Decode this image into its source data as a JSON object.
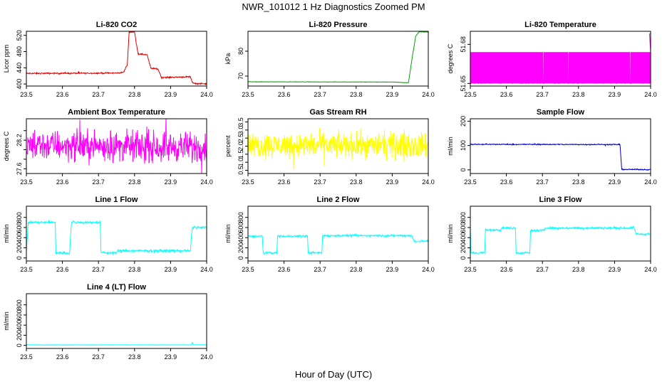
{
  "figure": {
    "title": "NWR_101012  1 Hz Diagnostics Zoomed PM",
    "xlabel": "Hour of Day (UTC)"
  },
  "chart_data": [
    {
      "type": "line",
      "title": "Li-820 CO2",
      "ylabel": "Licor ppm",
      "color": "#e00000",
      "xlim": [
        23.5,
        24.0
      ],
      "ylim": [
        395,
        530
      ],
      "xticks": [
        "23.5",
        "23.6",
        "23.7",
        "23.8",
        "23.9",
        "24.0"
      ],
      "yticks": [
        "400",
        "440",
        "480",
        "520"
      ],
      "x": [
        23.5,
        23.75,
        23.77,
        23.78,
        23.785,
        23.8,
        23.81,
        23.835,
        23.845,
        23.865,
        23.875,
        23.955,
        23.96,
        23.97,
        24.0
      ],
      "y": [
        426,
        427,
        429,
        448,
        528,
        528,
        474,
        472,
        439,
        437,
        416,
        418,
        404,
        401,
        401
      ],
      "noise": 1.2
    },
    {
      "type": "line",
      "title": "Li-820 Pressure",
      "ylabel": "kPa",
      "color": "#00a000",
      "xlim": [
        23.5,
        24.0
      ],
      "ylim": [
        66,
        88
      ],
      "xticks": [
        "23.5",
        "23.6",
        "23.7",
        "23.8",
        "23.9",
        "24.0"
      ],
      "yticks": [
        "70",
        "80"
      ],
      "x": [
        23.5,
        23.91,
        23.93,
        23.945,
        23.955,
        23.965,
        23.975,
        24.0
      ],
      "y": [
        67.7,
        67.6,
        67.4,
        67.4,
        77,
        86,
        87.8,
        87.7
      ],
      "noise": 0.06
    },
    {
      "type": "line",
      "title": "Li-820 Temperature",
      "ylabel": "degrees C",
      "color": "#ff00ff",
      "xlim": [
        23.5,
        24.0
      ],
      "ylim": [
        51.648,
        51.69
      ],
      "xticks": [
        "23.5",
        "23.6",
        "23.7",
        "23.8",
        "23.9",
        "24.0"
      ],
      "yticks": [
        "51.65",
        "51.68"
      ],
      "x": [
        23.5,
        23.995,
        23.997,
        24.0
      ],
      "y": [
        51.652,
        51.652,
        51.688,
        51.688
      ],
      "toggle": [
        51.65,
        51.674
      ],
      "noise": 0
    },
    {
      "type": "line",
      "title": "Ambient Box Temperature",
      "ylabel": "degrees C",
      "color": "#ff00ff",
      "xlim": [
        23.5,
        24.0
      ],
      "ylim": [
        27.5,
        28.65
      ],
      "xticks": [
        "23.5",
        "23.6",
        "23.7",
        "23.8",
        "23.9",
        "24.0"
      ],
      "yticks": [
        "27.6",
        "28.2"
      ],
      "yticksMinor": [
        "27.8",
        "28.0",
        "28.4"
      ],
      "x": [
        23.5,
        24.0
      ],
      "y": [
        28.1,
        28.05
      ],
      "noise": 0.22
    },
    {
      "type": "line",
      "title": "Gas Stream RH",
      "ylabel": "percent",
      "color": "#ffff00",
      "xlim": [
        23.5,
        24.0
      ],
      "ylim": [
        0.3,
        3.7
      ],
      "xticks": [
        "23.5",
        "23.6",
        "23.7",
        "23.8",
        "23.9",
        "24.0"
      ],
      "yticks": [
        "0.5",
        "1.0",
        "1.5",
        "2.0",
        "2.5",
        "3.0",
        "3.5"
      ],
      "x": [
        23.5,
        24.0
      ],
      "y": [
        2.05,
        2.05
      ],
      "noise": 0.55
    },
    {
      "type": "line",
      "title": "Sample Flow",
      "ylabel": "ml/min",
      "color": "#0000cc",
      "xlim": [
        23.5,
        24.0
      ],
      "ylim": [
        -15,
        210
      ],
      "xticks": [
        "23.5",
        "23.6",
        "23.7",
        "23.8",
        "23.9",
        "24.0"
      ],
      "yticks": [
        "0",
        "100",
        "200"
      ],
      "x": [
        23.5,
        23.915,
        23.92,
        24.0
      ],
      "y": [
        105,
        104,
        2,
        1
      ],
      "noise": 1.5
    },
    {
      "type": "line",
      "title": "Line 1 Flow",
      "ylabel": "ml/min",
      "color": "#00ffff",
      "xlim": [
        23.5,
        24.0
      ],
      "ylim": [
        -60,
        1020
      ],
      "xticks": [
        "23.5",
        "23.6",
        "23.7",
        "23.8",
        "23.9",
        "24.0"
      ],
      "yticks": [
        "0",
        "200",
        "400",
        "600",
        "800"
      ],
      "x": [
        23.5,
        23.505,
        23.58,
        23.582,
        23.62,
        23.625,
        23.705,
        23.707,
        23.75,
        23.752,
        23.955,
        23.96,
        24.0
      ],
      "y": [
        100,
        700,
        700,
        100,
        100,
        700,
        700,
        100,
        100,
        140,
        140,
        600,
        600
      ],
      "noise": 18
    },
    {
      "type": "line",
      "title": "Line 2 Flow",
      "ylabel": "ml/min",
      "color": "#00ffff",
      "xlim": [
        23.5,
        24.0
      ],
      "ylim": [
        -60,
        1020
      ],
      "xticks": [
        "23.5",
        "23.6",
        "23.7",
        "23.8",
        "23.9",
        "24.0"
      ],
      "yticks": [
        "0",
        "200",
        "400",
        "600",
        "800"
      ],
      "x": [
        23.5,
        23.54,
        23.542,
        23.58,
        23.582,
        23.665,
        23.667,
        23.705,
        23.707,
        23.955,
        23.96,
        24.0
      ],
      "y": [
        430,
        430,
        100,
        100,
        430,
        430,
        100,
        100,
        440,
        440,
        330,
        330
      ],
      "noise": 14
    },
    {
      "type": "line",
      "title": "Line 3 Flow",
      "ylabel": "ml/min",
      "color": "#00ffff",
      "xlim": [
        23.5,
        24.0
      ],
      "ylim": [
        -60,
        1020
      ],
      "xticks": [
        "23.5",
        "23.6",
        "23.7",
        "23.8",
        "23.9",
        "24.0"
      ],
      "yticks": [
        "0",
        "200",
        "400",
        "600",
        "800"
      ],
      "x": [
        23.5,
        23.502,
        23.54,
        23.542,
        23.585,
        23.587,
        23.625,
        23.627,
        23.665,
        23.667,
        23.705,
        23.707,
        23.955,
        23.96,
        24.0
      ],
      "y": [
        600,
        100,
        100,
        550,
        550,
        590,
        590,
        100,
        100,
        540,
        540,
        590,
        590,
        470,
        470
      ],
      "noise": 14
    },
    {
      "type": "line",
      "title": "Line 4 (LT) Flow",
      "ylabel": "ml/min",
      "color": "#00ffff",
      "xlim": [
        23.5,
        24.0
      ],
      "ylim": [
        -60,
        1020
      ],
      "xticks": [
        "23.5",
        "23.6",
        "23.7",
        "23.8",
        "23.9",
        "24.0"
      ],
      "yticks": [
        "0",
        "200",
        "400",
        "600",
        "800"
      ],
      "x": [
        23.5,
        23.958,
        23.96,
        23.963,
        24.0
      ],
      "y": [
        10,
        10,
        60,
        12,
        12
      ],
      "noise": 2
    }
  ]
}
